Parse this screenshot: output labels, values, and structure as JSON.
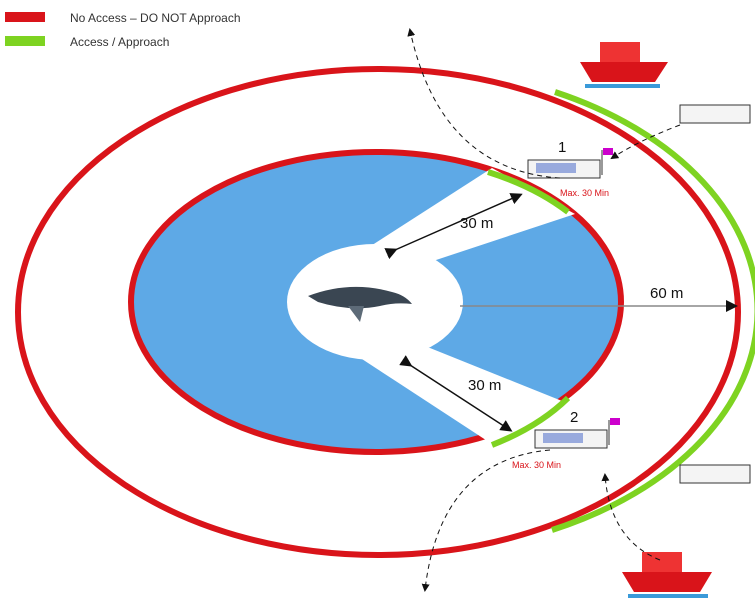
{
  "legend": [
    {
      "label": "No Access – DO NOT Approach",
      "color": "#d9141a"
    },
    {
      "label": "Access / Approach",
      "color": "#7ed321"
    }
  ],
  "distances": {
    "upper": "30 m",
    "lower": "30 m",
    "outer": "60 m"
  },
  "boats": [
    {
      "number": "1",
      "limit": "Max. 30 Min"
    },
    {
      "number": "2",
      "limit": "Max. 30 Min"
    }
  ]
}
